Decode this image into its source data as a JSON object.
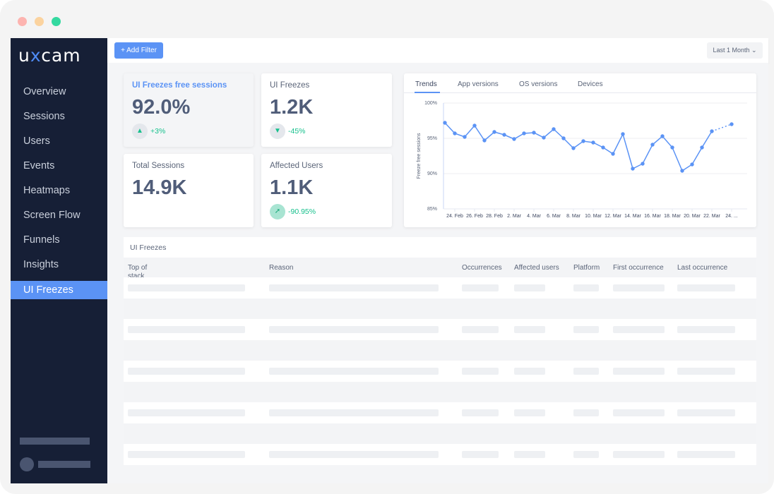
{
  "window": {
    "controls": [
      "close",
      "minimize",
      "maximize"
    ],
    "colors": {
      "close": "#fdb4b0",
      "minimize": "#fbd39f",
      "maximize": "#34d9a0"
    }
  },
  "sidebar": {
    "logo": "uxcam",
    "items": [
      {
        "label": "Overview"
      },
      {
        "label": "Sessions"
      },
      {
        "label": "Users"
      },
      {
        "label": "Events"
      },
      {
        "label": "Heatmaps"
      },
      {
        "label": "Screen Flow"
      },
      {
        "label": "Funnels"
      },
      {
        "label": "Insights"
      },
      {
        "label": "UI Freezes",
        "active": true
      }
    ]
  },
  "topbar": {
    "add_filter": "+ Add Filter",
    "date_range": "Last 1 Month"
  },
  "cards": [
    {
      "title": "UI Freezes free sessions",
      "value": "92.0%",
      "change": "+3%",
      "trend": "up"
    },
    {
      "title": "UI Freezes",
      "value": "1.2K",
      "change": "-45%",
      "trend": "down"
    },
    {
      "title": "Total Sessions",
      "value": "14.9K"
    },
    {
      "title": "Affected Users",
      "value": "1.1K",
      "change": "-90.95%",
      "trend": "animating"
    }
  ],
  "chart_tabs": [
    "Trends",
    "App versions",
    "OS versions",
    "Devices"
  ],
  "chart_data": {
    "type": "line",
    "ylabel": "Freeze free sessions",
    "ylim": [
      85,
      100
    ],
    "yticks": [
      "100%",
      "95%",
      "90%",
      "85%"
    ],
    "xticks": [
      "24. Feb",
      "26. Feb",
      "28. Feb",
      "2. Mar",
      "4. Mar",
      "6. Mar",
      "8. Mar",
      "10. Mar",
      "12. Mar",
      "14. Mar",
      "16. Mar",
      "18. Mar",
      "20. Mar",
      "22. Mar",
      "24. ..."
    ],
    "x": [
      "23 Feb",
      "24 Feb",
      "25 Feb",
      "26 Feb",
      "27 Feb",
      "28 Feb",
      "29 Feb",
      "1 Mar",
      "2 Mar",
      "3 Mar",
      "4 Mar",
      "5 Mar",
      "6 Mar",
      "7 Mar",
      "8 Mar",
      "9 Mar",
      "10 Mar",
      "11 Mar",
      "12 Mar",
      "13 Mar",
      "14 Mar",
      "15 Mar",
      "16 Mar",
      "17 Mar",
      "18 Mar",
      "19 Mar",
      "20 Mar",
      "21 Mar",
      "22 Mar",
      "23 Mar"
    ],
    "values": [
      97.2,
      95.7,
      95.2,
      96.8,
      94.7,
      95.9,
      95.5,
      94.9,
      95.7,
      95.8,
      95.1,
      96.3,
      95.0,
      93.6,
      94.6,
      94.4,
      93.7,
      92.8,
      95.6,
      90.7,
      91.4,
      94.1,
      95.3,
      93.7,
      90.4,
      91.3,
      93.7,
      96.0,
      null,
      97.0
    ],
    "color": "#5b93f5",
    "grid": true
  },
  "table": {
    "title": "UI Freezes",
    "columns": [
      "Top of stack",
      "Reason",
      "Occurrences",
      "Affected users",
      "Platform",
      "First occurrence",
      "Last occurrence"
    ]
  }
}
